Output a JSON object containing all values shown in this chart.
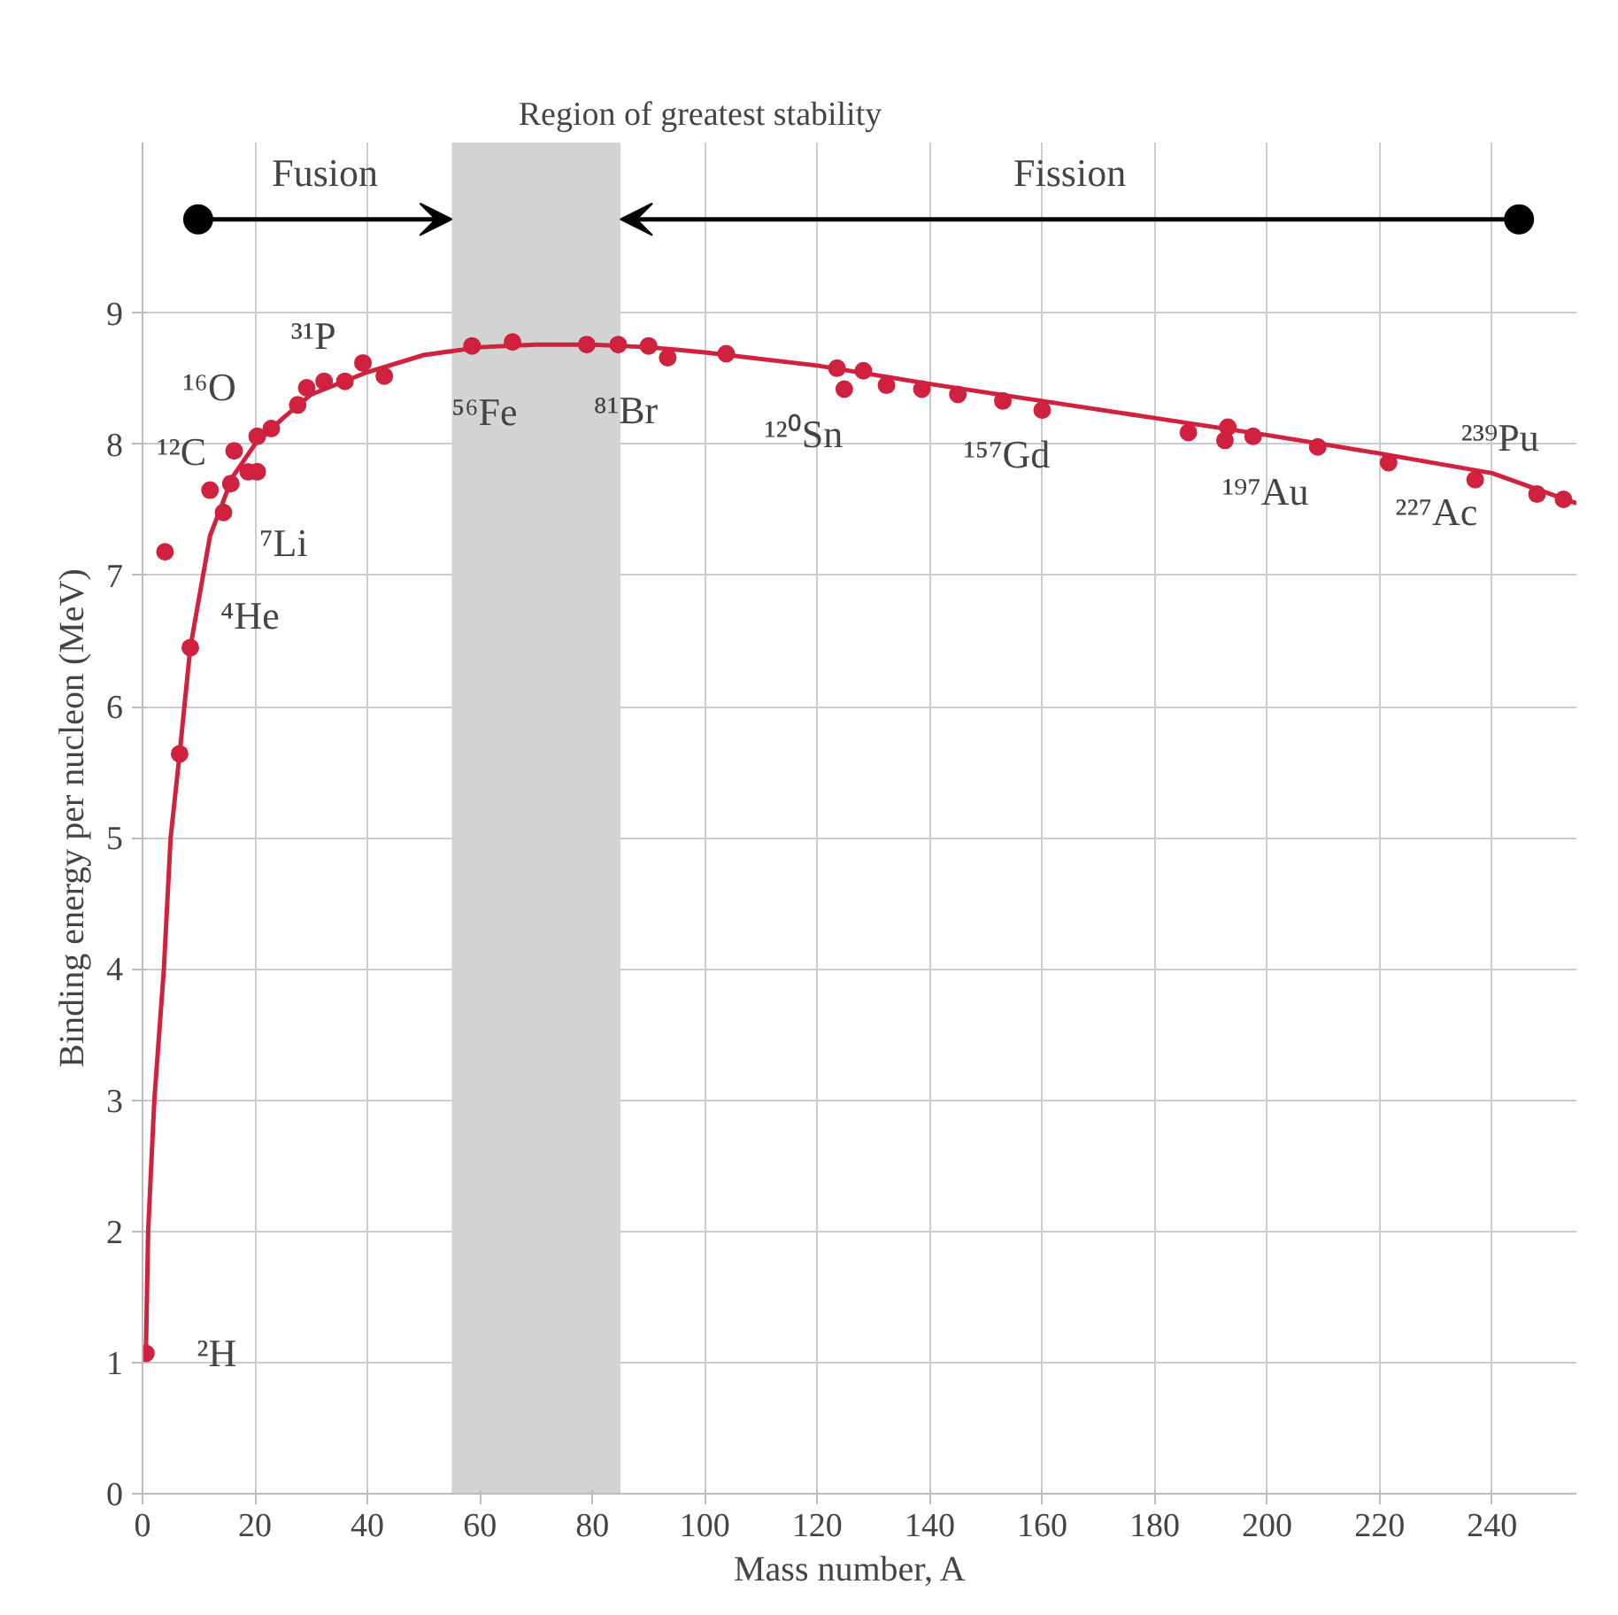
{
  "chart_data": {
    "type": "scatter",
    "xlabel": "Mass number,   A",
    "ylabel": "Binding energy per nucleon (MeV)",
    "xlim": [
      0,
      255
    ],
    "ylim": [
      0,
      10.3
    ],
    "xticks": [
      0,
      20,
      40,
      60,
      80,
      100,
      120,
      140,
      160,
      180,
      200,
      220,
      240
    ],
    "yticks": [
      0,
      1,
      2,
      3,
      4,
      5,
      6,
      7,
      8,
      9
    ],
    "grid": true,
    "marker": "circle",
    "series": [
      {
        "color": "#d0213f",
        "x": [
          0.6,
          4,
          6.6,
          8.5,
          12,
          14.4,
          15.7,
          16.3,
          18.8,
          20.4,
          20.4,
          22.9,
          27.6,
          29.2,
          32.3,
          36,
          39.2,
          43,
          58.6,
          65.8,
          79,
          84.6,
          90,
          93.4,
          103.8,
          123.5,
          124.8,
          128.2,
          132.3,
          138.6,
          145,
          153,
          160,
          186,
          192.5,
          193,
          197.5,
          209,
          221.6,
          237,
          248,
          252.7
        ],
        "values": [
          1.07,
          7.18,
          5.64,
          6.45,
          7.65,
          7.48,
          7.7,
          7.95,
          7.79,
          7.79,
          8.06,
          8.12,
          8.3,
          8.43,
          8.48,
          8.48,
          8.62,
          8.52,
          8.75,
          8.78,
          8.76,
          8.76,
          8.75,
          8.66,
          8.69,
          8.58,
          8.42,
          8.56,
          8.45,
          8.42,
          8.38,
          8.33,
          8.26,
          8.09,
          8.03,
          8.13,
          8.06,
          7.98,
          7.86,
          7.73,
          7.62,
          7.58
        ]
      },
      {
        "type": "line",
        "marker": "none",
        "color": "#d0213f",
        "x": [
          0.6,
          1,
          2.1,
          3.8,
          5,
          6.6,
          8.5,
          12,
          16,
          20,
          25,
          30,
          40,
          50,
          60,
          70,
          80,
          90,
          100,
          120,
          140,
          160,
          180,
          200,
          220,
          240,
          255
        ],
        "values": [
          1.07,
          2,
          3,
          4,
          5,
          5.64,
          6.45,
          7.3,
          7.75,
          8.0,
          8.2,
          8.38,
          8.55,
          8.68,
          8.74,
          8.76,
          8.76,
          8.74,
          8.7,
          8.6,
          8.46,
          8.33,
          8.2,
          8.07,
          7.93,
          7.78,
          7.55
        ]
      }
    ],
    "bands": [
      {
        "axis": "x",
        "from": 55,
        "to": 85,
        "label": "Region of greatest stability",
        "color": "#d3d3d3"
      }
    ],
    "annotations": [
      "Fusion",
      "Fission",
      {
        "text": "²H",
        "x": 0.6,
        "y": 1.07
      },
      {
        "text": "⁴He",
        "x": 4,
        "y": 7.18
      },
      {
        "text": "⁷Li",
        "x": 14.4,
        "y": 7.48
      },
      {
        "text": "¹²C",
        "x": 12,
        "y": 7.65
      },
      {
        "text": "¹⁶O",
        "x": 16.3,
        "y": 7.95
      },
      {
        "text": "³¹P",
        "x": 32.3,
        "y": 8.48
      },
      {
        "text": "⁵⁶Fe",
        "x": 58.6,
        "y": 8.75
      },
      {
        "text": "⁸¹Br",
        "x": 79,
        "y": 8.76
      },
      {
        "text": "¹²⁰Sn",
        "x": 124.8,
        "y": 8.42
      },
      {
        "text": "¹⁵⁷Gd",
        "x": 160,
        "y": 8.26
      },
      {
        "text": "¹⁹⁷Au",
        "x": 197.5,
        "y": 8.06
      },
      {
        "text": "²²⁷Ac",
        "x": 221.6,
        "y": 7.86
      },
      {
        "text": "²³⁹Pu",
        "x": 237,
        "y": 7.73
      }
    ]
  }
}
